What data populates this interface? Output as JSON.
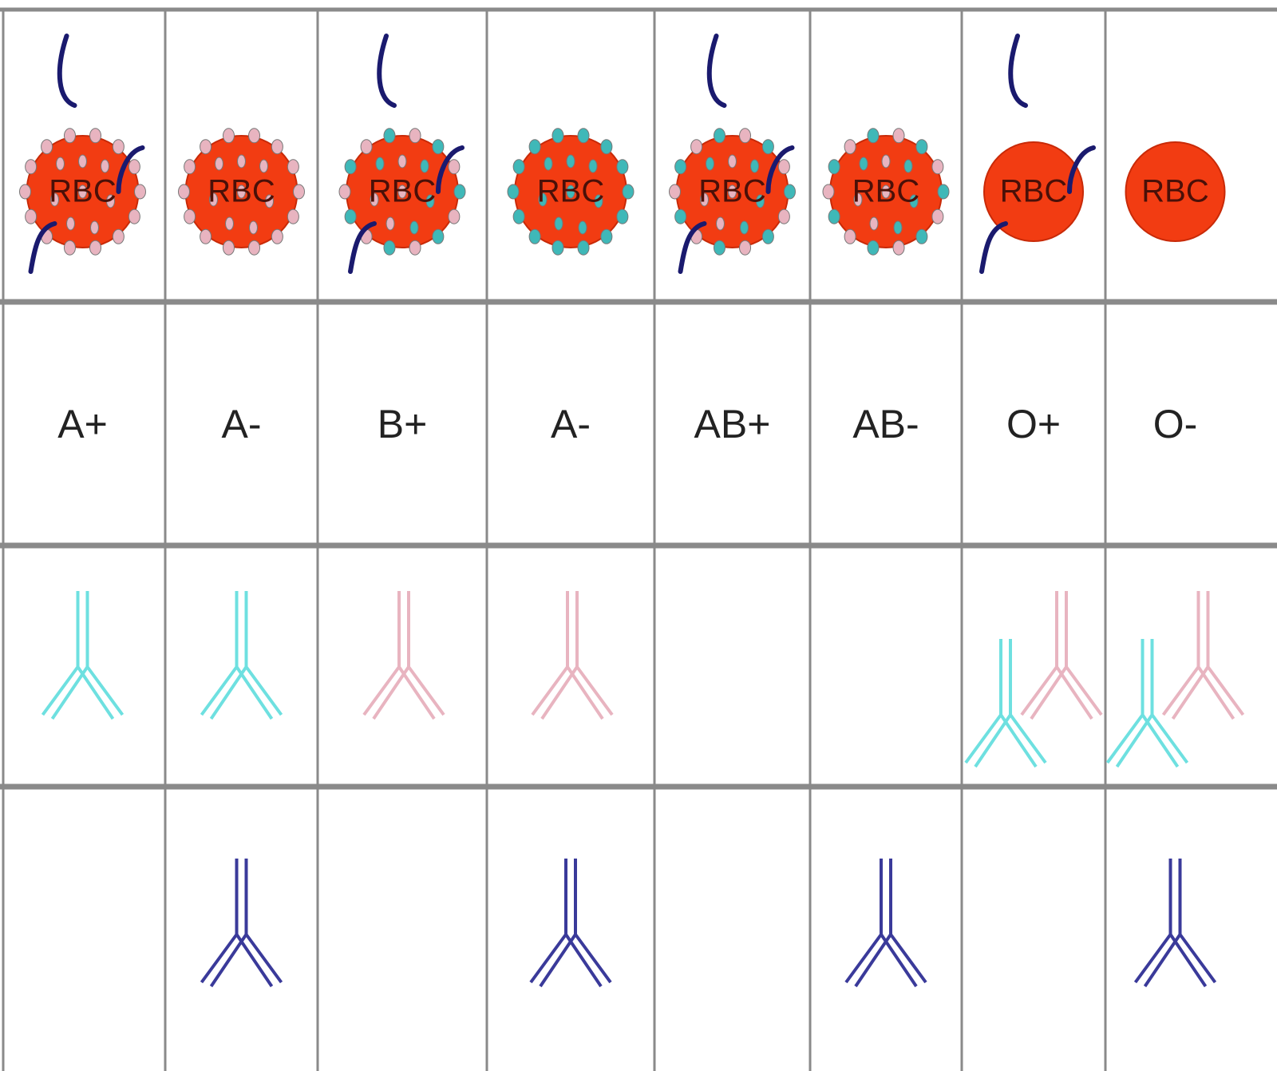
{
  "columns": [
    {
      "cell": "RBC",
      "blood_type": "A+"
    },
    {
      "cell": "RBC",
      "blood_type": "A-"
    },
    {
      "cell": "RBC",
      "blood_type": "B+"
    },
    {
      "cell": "RBC",
      "blood_type": "A-"
    },
    {
      "cell": "RBC",
      "blood_type": "AB+"
    },
    {
      "cell": "RBC",
      "blood_type": "AB-"
    },
    {
      "cell": "RBC",
      "blood_type": "O+"
    },
    {
      "cell": "RBC",
      "blood_type": "O-"
    }
  ]
}
